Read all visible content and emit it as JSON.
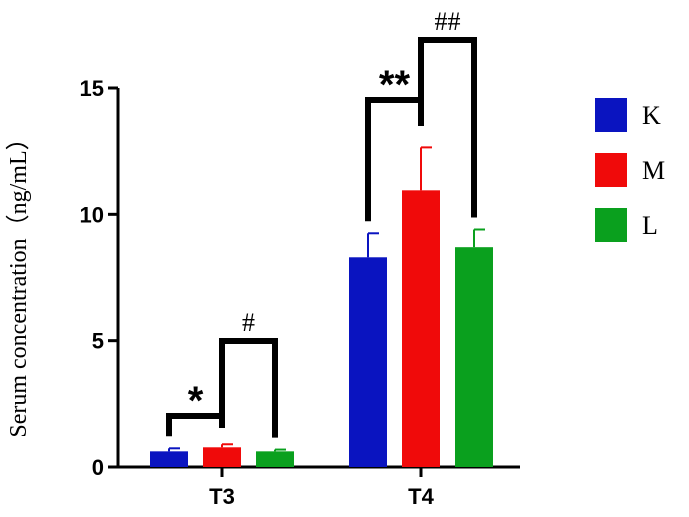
{
  "chart_data": {
    "type": "bar",
    "categories": [
      "T3",
      "T4"
    ],
    "ylabel": "Serum concentration（ng/mL）",
    "ylim": [
      0,
      15
    ],
    "yticks": [
      "0",
      "5",
      "10",
      "15"
    ],
    "legend_position": "right",
    "series": [
      {
        "name": "K",
        "color": "#0a14c0",
        "values": [
          0.62,
          8.3
        ],
        "errors": [
          0.12,
          0.95
        ]
      },
      {
        "name": "M",
        "color": "#f00a0a",
        "values": [
          0.78,
          10.95
        ],
        "errors": [
          0.12,
          1.7
        ]
      },
      {
        "name": "L",
        "color": "#0aa01e",
        "values": [
          0.62,
          8.7
        ],
        "errors": [
          0.07,
          0.7
        ]
      }
    ],
    "annotations": [
      {
        "category": 0,
        "from": 0,
        "to": 1,
        "label": "*",
        "kind": "star"
      },
      {
        "category": 0,
        "from": 1,
        "to": 2,
        "label": "#",
        "kind": "hash"
      },
      {
        "category": 1,
        "from": 0,
        "to": 1,
        "label": "**",
        "kind": "star"
      },
      {
        "category": 1,
        "from": 1,
        "to": 2,
        "label": "##",
        "kind": "hash"
      }
    ]
  }
}
